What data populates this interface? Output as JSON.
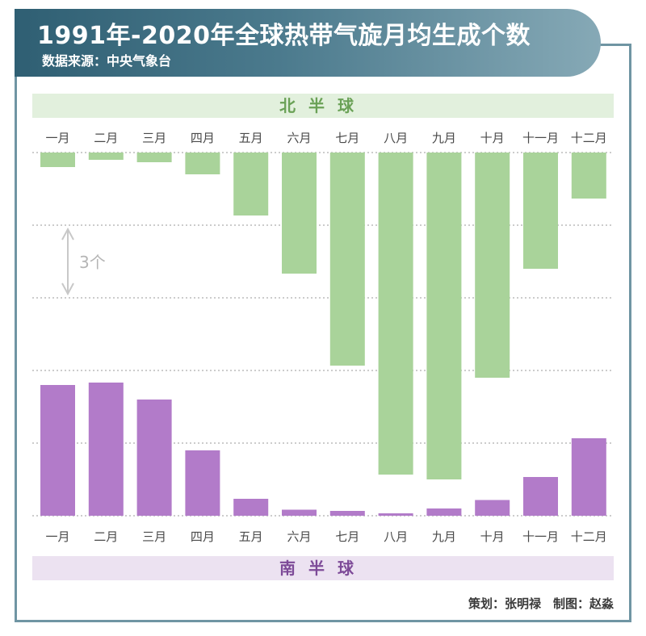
{
  "header": {
    "title": "1991年-2020年全球热带气旋月均生成个数",
    "source": "数据来源：中央气象台"
  },
  "sections": {
    "north_label": "北半球",
    "south_label": "南半球"
  },
  "scale_annotation": "3个",
  "credits": "策划：张明禄　制图：赵淼",
  "colors": {
    "north_bar": "#a9d39a",
    "south_bar": "#b27bc9",
    "banner": "#3e6d80",
    "frame": "#6f95a3"
  },
  "chart_data": [
    {
      "type": "bar",
      "orientation": "downward",
      "categories": [
        "一月",
        "二月",
        "三月",
        "四月",
        "五月",
        "六月",
        "七月",
        "八月",
        "九月",
        "十月",
        "十一月",
        "十二月"
      ],
      "series": [
        {
          "name": "北半球",
          "values": [
            0.6,
            0.3,
            0.4,
            0.9,
            2.6,
            5.0,
            8.8,
            13.3,
            13.5,
            9.3,
            4.8,
            1.9
          ]
        }
      ],
      "ylim": [
        0,
        15
      ],
      "unit": "个",
      "grid": true
    },
    {
      "type": "bar",
      "categories": [
        "一月",
        "二月",
        "三月",
        "四月",
        "五月",
        "六月",
        "七月",
        "八月",
        "九月",
        "十月",
        "十一月",
        "十二月"
      ],
      "series": [
        {
          "name": "南半球",
          "values": [
            5.4,
            5.5,
            4.8,
            2.7,
            0.7,
            0.25,
            0.2,
            0.1,
            0.3,
            0.65,
            1.6,
            3.2
          ]
        }
      ],
      "ylim": [
        0,
        15
      ],
      "unit": "个",
      "grid": true
    }
  ]
}
